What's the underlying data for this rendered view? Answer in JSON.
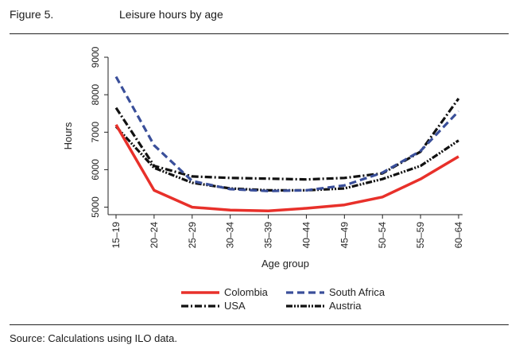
{
  "header": {
    "figure_label": "Figure 5.",
    "title": "Leisure hours by age"
  },
  "footer": {
    "source": "Source: Calculations using ILO data."
  },
  "chart_data": {
    "type": "line",
    "title": "Leisure hours by age",
    "xlabel": "Age group",
    "ylabel": "Hours",
    "categories": [
      "15–19",
      "20–24",
      "25–29",
      "30–34",
      "35–39",
      "40–44",
      "45–49",
      "50–54",
      "55–59",
      "60–64"
    ],
    "ylim": [
      4800,
      9000
    ],
    "yticks": [
      5000,
      6000,
      7000,
      8000,
      9000
    ],
    "grid": false,
    "legend_position": "bottom",
    "series": [
      {
        "name": "Colombia",
        "color": "#e8302a",
        "style": "solid",
        "values": [
          7200,
          5450,
          5000,
          4920,
          4900,
          4970,
          5060,
          5270,
          5750,
          6350
        ]
      },
      {
        "name": "South Africa",
        "color": "#3a4f9a",
        "style": "dashed",
        "values": [
          8480,
          6650,
          5700,
          5480,
          5430,
          5450,
          5580,
          5920,
          6500,
          7560
        ]
      },
      {
        "name": "USA",
        "color": "#111111",
        "style": "dashdot",
        "values": [
          7650,
          6100,
          5820,
          5780,
          5760,
          5740,
          5780,
          5900,
          6480,
          7900
        ]
      },
      {
        "name": "Austria",
        "color": "#111111",
        "style": "dashdotdot",
        "values": [
          7150,
          6050,
          5650,
          5500,
          5450,
          5450,
          5500,
          5750,
          6100,
          6780
        ]
      }
    ]
  }
}
